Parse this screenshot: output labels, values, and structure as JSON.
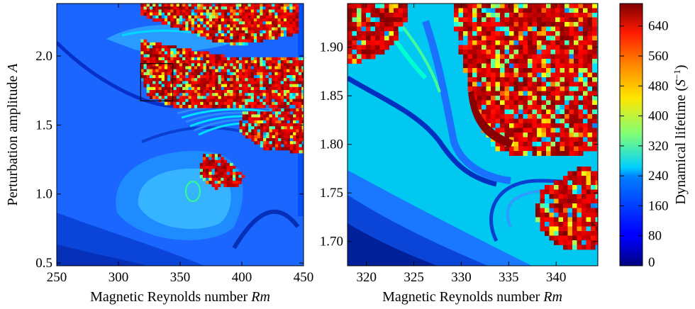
{
  "chart_data": [
    {
      "type": "heatmap",
      "panel": "left",
      "xlabel": "Magnetic Reynolds number Rm",
      "xlabel_parts": [
        "Magnetic Reynolds number ",
        "Rm"
      ],
      "ylabel": "Perturbation amplitude A",
      "ylabel_parts": [
        "Perturbation amplitude ",
        "A"
      ],
      "xlim": [
        250,
        450
      ],
      "ylim": [
        0.48,
        2.38
      ],
      "xticks": [
        250,
        300,
        350,
        400,
        450
      ],
      "xtick_labels": [
        "250",
        "300",
        "350",
        "400",
        "450"
      ],
      "yticks": [
        0.5,
        1.0,
        1.5,
        2.0
      ],
      "ytick_labels": [
        "0.5",
        "1.0",
        "1.5",
        "2.0"
      ],
      "zoom_box": {
        "x": [
          318,
          344
        ],
        "y": [
          1.675,
          1.945
        ]
      },
      "colormap": "jet",
      "noise_regions": [
        {
          "name": "upper chaotic band",
          "x": [
            318,
            446
          ],
          "y": [
            1.63,
            2.38
          ]
        },
        {
          "name": "middle-right chaotic band",
          "x": [
            395,
            450
          ],
          "y": [
            1.3,
            1.6
          ]
        },
        {
          "name": "lower chaotic island",
          "x": [
            360,
            405
          ],
          "y": [
            1.03,
            1.3
          ]
        }
      ]
    },
    {
      "type": "heatmap",
      "panel": "right",
      "xlabel": "Magnetic Reynolds number Rm",
      "xlabel_parts": [
        "Magnetic Reynolds number ",
        "Rm"
      ],
      "ylabel": "",
      "xlim": [
        318,
        344.4
      ],
      "ylim": [
        1.675,
        1.945
      ],
      "xticks": [
        320,
        325,
        330,
        335,
        340
      ],
      "xtick_labels": [
        "320",
        "325",
        "330",
        "335",
        "340"
      ],
      "yticks": [
        1.7,
        1.75,
        1.8,
        1.85,
        1.9
      ],
      "ytick_labels": [
        "1.70",
        "1.75",
        "1.80",
        "1.85",
        "1.90"
      ],
      "colormap": "jet",
      "noise_regions": [
        {
          "name": "upper-left chaotic corner",
          "x": [
            318,
            324
          ],
          "y": [
            1.86,
            1.945
          ]
        },
        {
          "name": "upper-right chaotic block",
          "x": [
            331,
            344.4
          ],
          "y": [
            1.81,
            1.945
          ]
        },
        {
          "name": "lower-right chaotic block",
          "x": [
            336,
            344.4
          ],
          "y": [
            1.7,
            1.79
          ]
        }
      ]
    }
  ],
  "colorbar": {
    "label": "Dynamical lifetime (S⁻¹)",
    "label_parts": [
      "Dynamical lifetime (",
      "S",
      "−1",
      ")"
    ],
    "min": 0,
    "max": 700,
    "ticks": [
      0,
      80,
      160,
      240,
      320,
      400,
      480,
      560,
      640
    ],
    "tick_labels": [
      "0",
      "80",
      "160",
      "240",
      "320",
      "400",
      "480",
      "560",
      "640"
    ],
    "colormap": "jet"
  }
}
